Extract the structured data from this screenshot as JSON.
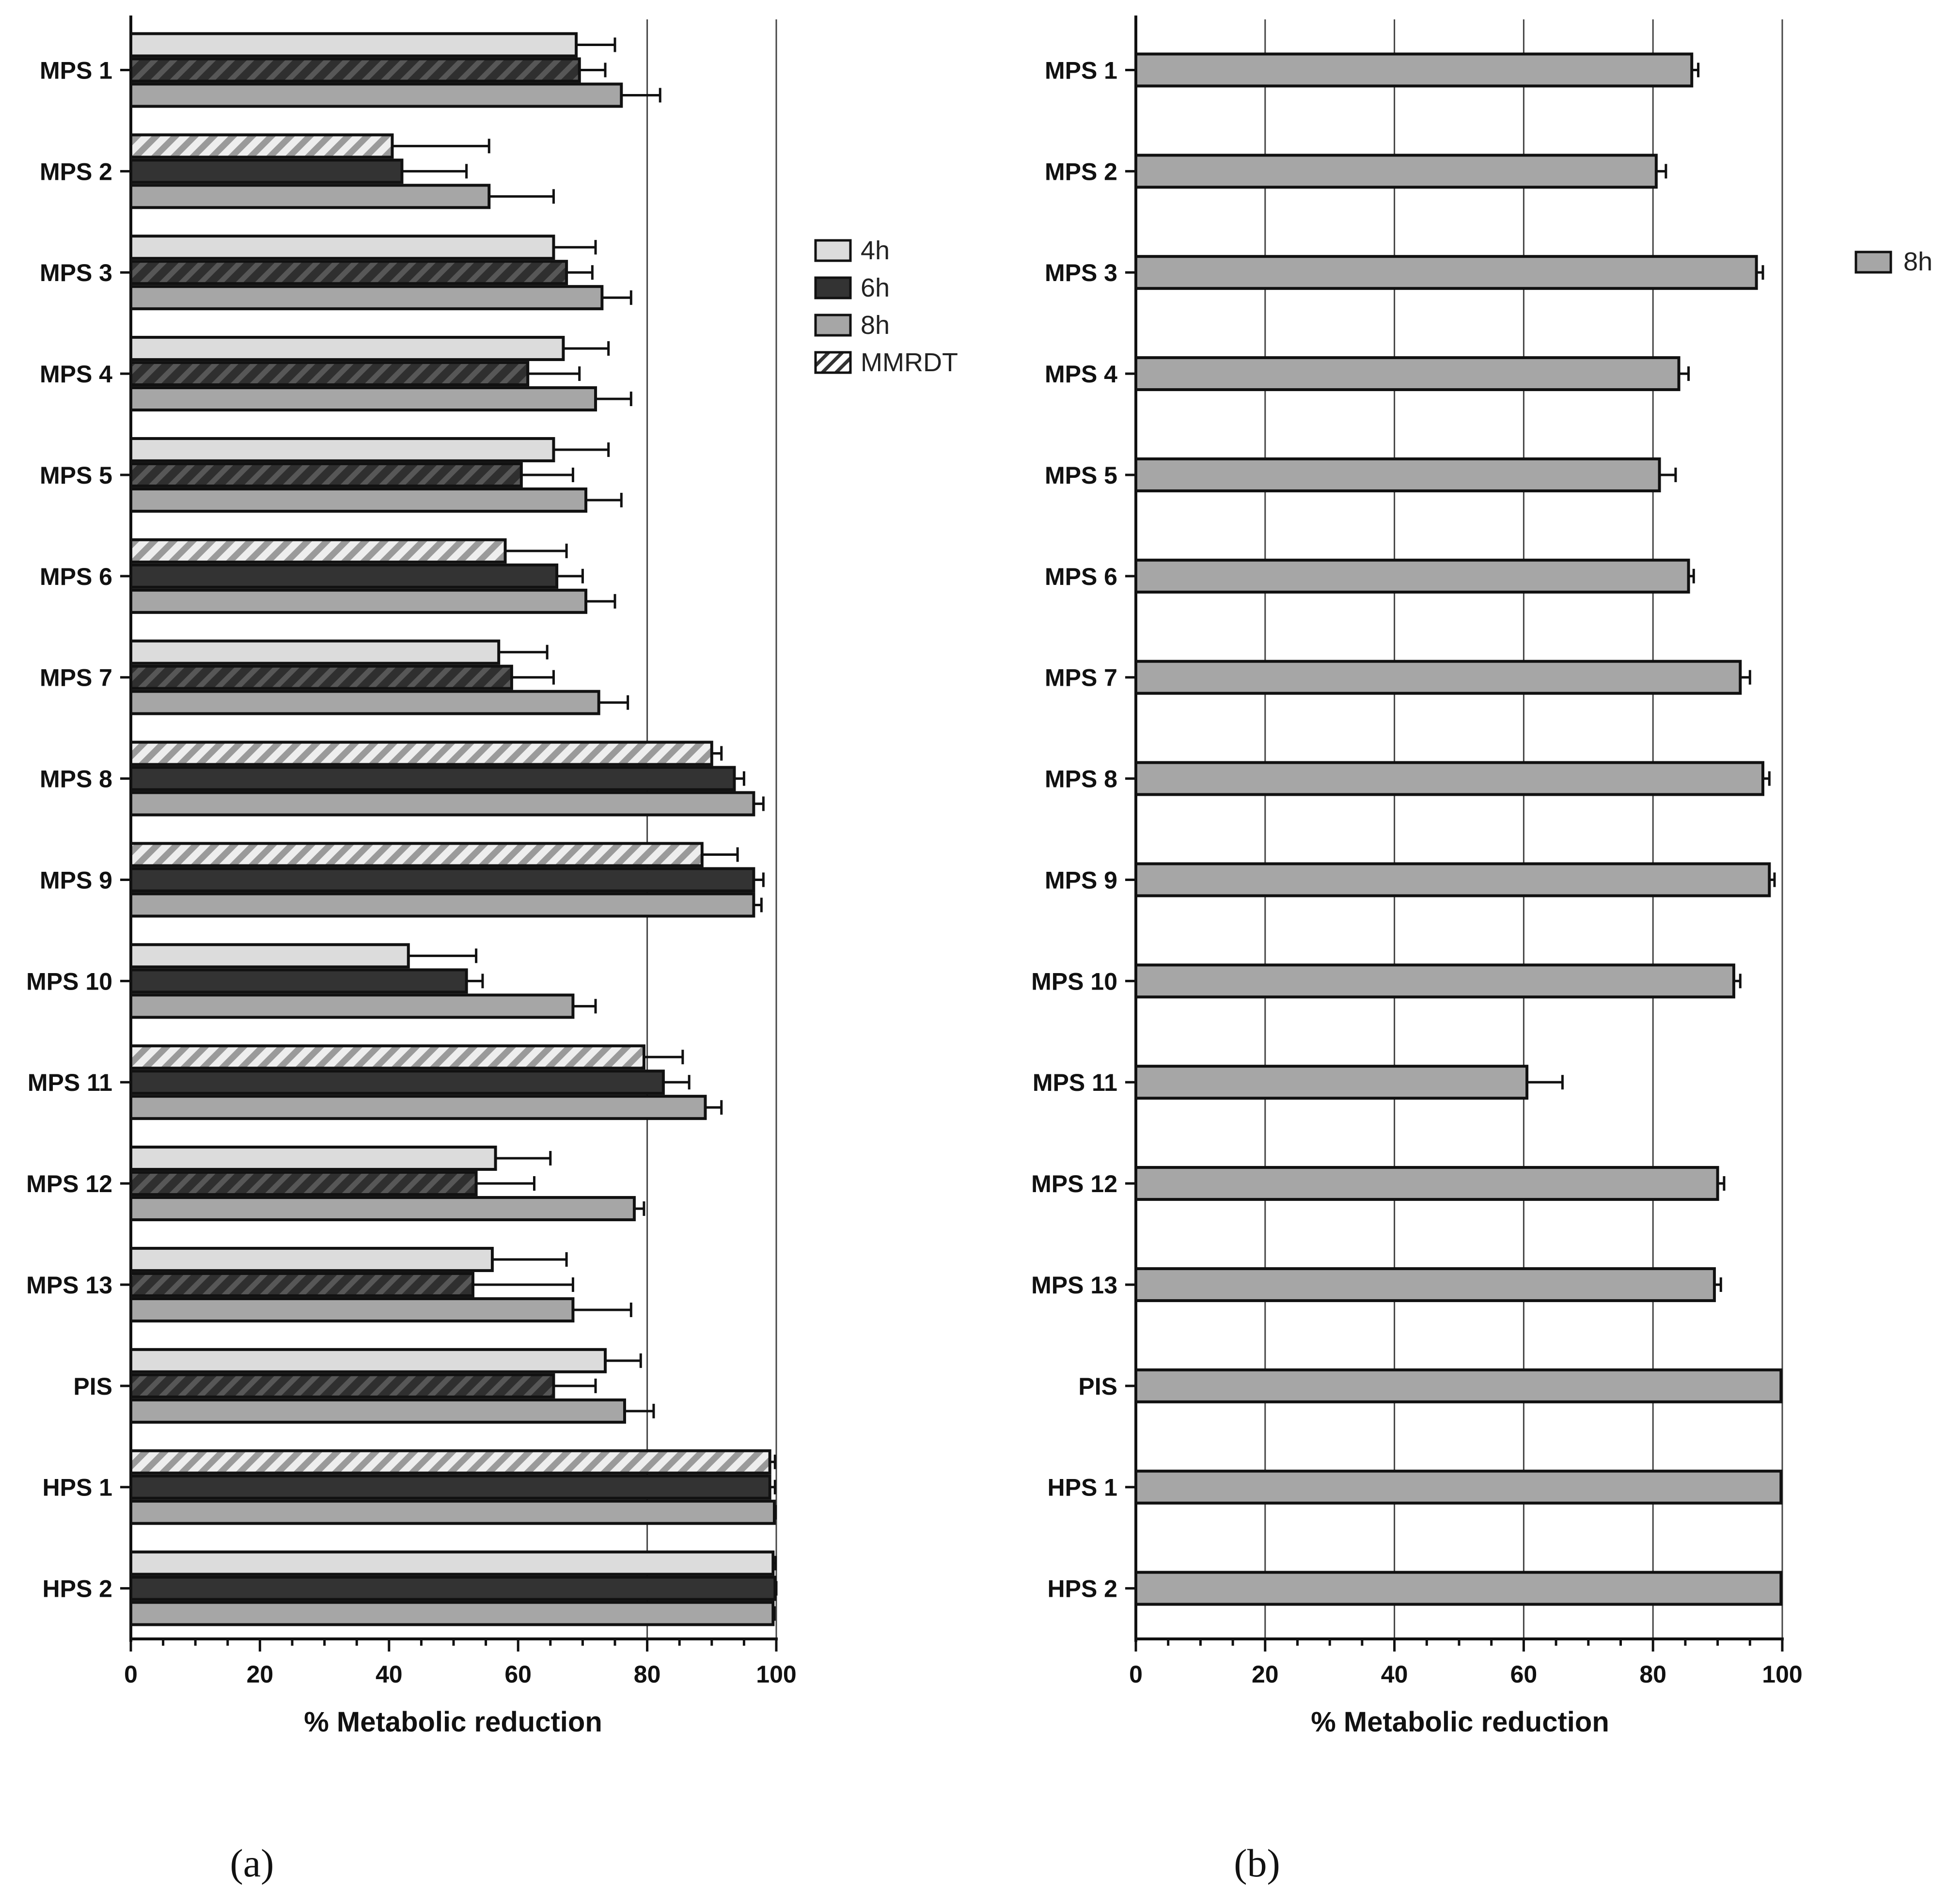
{
  "colors": {
    "h4": "#dcdcdc",
    "h6": "#333333",
    "h8": "#a6a6a6",
    "mmrdt_bg": "#eeeeee",
    "mmrdt_stripe": "#9a9a9a",
    "mmrdt_dark_stripe": "#555555",
    "edge": "#111111",
    "grid": "#444444"
  },
  "chart_data": [
    {
      "type": "bar",
      "orientation": "horizontal",
      "panel_label": "(a)",
      "xlabel": "% Metabolic reduction",
      "xlim": [
        0,
        100
      ],
      "xticks": [
        0,
        20,
        40,
        60,
        80,
        100
      ],
      "grid": "vertical at 80 and 100",
      "legend_position": "right",
      "legend": [
        "4h",
        "6h",
        "8h",
        "MMRDT"
      ],
      "categories": [
        "MPS 1",
        "MPS 2",
        "MPS 3",
        "MPS 4",
        "MPS 5",
        "MPS 6",
        "MPS 7",
        "MPS 8",
        "MPS 9",
        "MPS 10",
        "MPS 11",
        "MPS 12",
        "MPS 13",
        "PIS",
        "HPS 1",
        "HPS 2"
      ],
      "mmrdt_series_index": [
        1,
        0,
        1,
        1,
        1,
        0,
        1,
        0,
        0,
        -1,
        0,
        1,
        1,
        1,
        0,
        -1
      ],
      "series": [
        {
          "name": "4h",
          "values": [
            69,
            40.5,
            65.5,
            67,
            65.5,
            58,
            57,
            90,
            88.5,
            43,
            79.5,
            56.5,
            56,
            73.5,
            99,
            99.5
          ],
          "errors": [
            6,
            15,
            6.5,
            7,
            8.5,
            9.5,
            7.5,
            1.5,
            5.5,
            10.5,
            6,
            8.5,
            11.5,
            5.5,
            0.8,
            0.4
          ]
        },
        {
          "name": "6h",
          "values": [
            69.5,
            42,
            67.5,
            61.5,
            60.5,
            66,
            59,
            93.5,
            96.5,
            52,
            82.5,
            53.5,
            53,
            65.5,
            99,
            99.8
          ],
          "errors": [
            4,
            10,
            4,
            8,
            8,
            4,
            6.5,
            1.5,
            1.5,
            2.5,
            4,
            9,
            15.5,
            6.5,
            0.8,
            0.2
          ]
        },
        {
          "name": "8h",
          "values": [
            76,
            55.5,
            73,
            72,
            70.5,
            70.5,
            72.5,
            96.5,
            96.5,
            68.5,
            89,
            78,
            68.5,
            76.5,
            99.7,
            99.5
          ],
          "errors": [
            6,
            10,
            4.5,
            5.5,
            5.5,
            4.5,
            4.5,
            1.5,
            1.2,
            3.5,
            2.5,
            1.5,
            9,
            4.5,
            0.2,
            0.2
          ]
        }
      ]
    },
    {
      "type": "bar",
      "orientation": "horizontal",
      "panel_label": "(b)",
      "xlabel": "% Metabolic reduction",
      "xlim": [
        0,
        100
      ],
      "xticks": [
        0,
        20,
        40,
        60,
        80,
        100
      ],
      "grid": "vertical at 20, 40, 60, 80, 100",
      "legend_position": "right",
      "legend": [
        "8h"
      ],
      "categories": [
        "MPS 1",
        "MPS 2",
        "MPS 3",
        "MPS 4",
        "MPS 5",
        "MPS 6",
        "MPS 7",
        "MPS 8",
        "MPS 9",
        "MPS 10",
        "MPS 11",
        "MPS 12",
        "MPS 13",
        "PIS",
        "HPS 1",
        "HPS 2"
      ],
      "series": [
        {
          "name": "8h",
          "values": [
            86,
            80.5,
            96,
            84,
            81,
            85.5,
            93.5,
            97,
            98,
            92.5,
            60.5,
            90,
            89.5,
            99.8,
            99.8,
            99.8
          ],
          "errors": [
            1,
            1.5,
            1,
            1.5,
            2.5,
            0.8,
            1.5,
            1,
            0.8,
            1,
            5.5,
            1,
            1,
            0,
            0,
            0
          ]
        }
      ]
    }
  ]
}
